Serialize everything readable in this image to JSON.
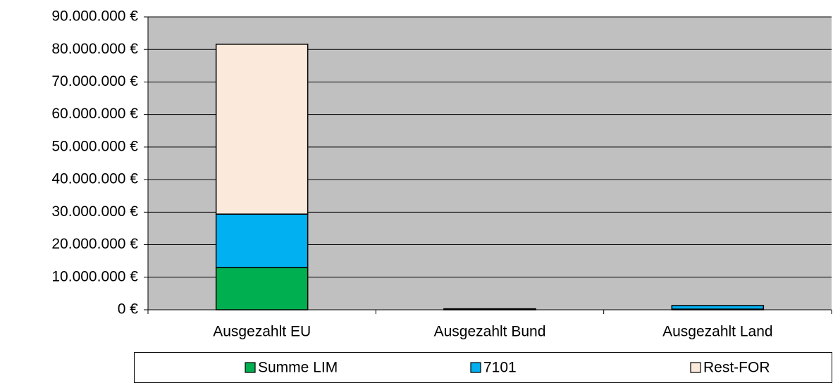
{
  "chart_data": {
    "type": "stacked_bar",
    "categories": [
      "Ausgezahlt EU",
      "Ausgezahlt Bund",
      "Ausgezahlt Land"
    ],
    "series": [
      {
        "name": "Summe LIM",
        "color": "#00b050",
        "values": [
          13000000,
          200000,
          200000
        ]
      },
      {
        "name": "7101",
        "color": "#00b0f0",
        "values": [
          16400000,
          100000,
          1100000
        ]
      },
      {
        "name": "Rest-FOR",
        "color": "#fbe9db",
        "values": [
          52200000,
          0,
          0
        ]
      }
    ],
    "ylim": [
      0,
      90000000
    ],
    "yticks": [
      {
        "value": 0,
        "label": "0 €"
      },
      {
        "value": 10000000,
        "label": "10.000.000 €"
      },
      {
        "value": 20000000,
        "label": "20.000.000 €"
      },
      {
        "value": 30000000,
        "label": "30.000.000 €"
      },
      {
        "value": 40000000,
        "label": "40.000.000 €"
      },
      {
        "value": 50000000,
        "label": "50.000.000 €"
      },
      {
        "value": 60000000,
        "label": "60.000.000 €"
      },
      {
        "value": 70000000,
        "label": "70.000.000 €"
      },
      {
        "value": 80000000,
        "label": "80.000.000 €"
      },
      {
        "value": 90000000,
        "label": "90.000.000 €"
      }
    ],
    "grid": true,
    "legend": "bottom"
  }
}
